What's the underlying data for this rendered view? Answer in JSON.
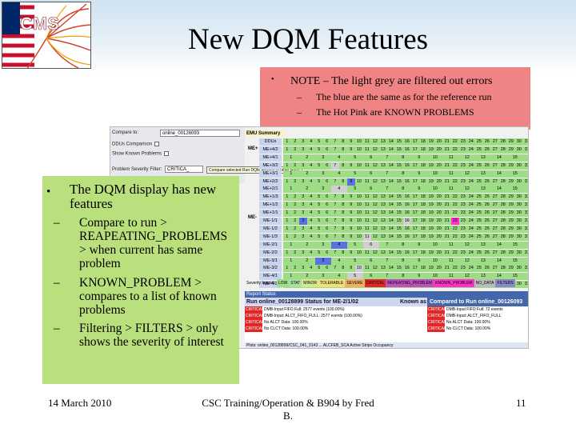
{
  "slide": {
    "title": "New DQM Features",
    "logo_text": "CMS",
    "note": {
      "main": "NOTE – The light grey are filtered out errors",
      "subs": [
        "The blue are the same as for the reference run",
        "The Hot Pink are KNOWN PROBLEMS"
      ]
    },
    "green_box": {
      "main": "The DQM display has new features",
      "subs": [
        "Compare to run > REAPEATING_PROBLEMS > when current has same problem",
        "KNOWN_PROBLEM > compares to a list of known problems",
        "Filtering > FILTERS > only shows the severity of interest"
      ]
    },
    "footer": {
      "date": "14 March 2010",
      "center": "CSC Training/Operation & B904 by Fred B.",
      "page": "11"
    }
  },
  "screenshot": {
    "form": {
      "compare_to_label": "Compare to:",
      "compare_to_value": "online_00126093",
      "ddu_comparison_label": "DDUs Comparison",
      "show_known_problems_label": "Show Known Problems",
      "problem_severity_filter_label": "Problem Severity Filter:",
      "problem_severity_filter_value": "CRITICA_",
      "tooltip": "Compare selected Run DQM Results to other Runs"
    },
    "grid": {
      "emu_label": "EMU Summary",
      "ddus_label": "DDUs",
      "me_plus": "ME+",
      "me_minus": "ME-",
      "rows": [
        "ME+4/2",
        "ME+4/1",
        "ME+3/2",
        "ME+3/1",
        "ME+2/2",
        "ME+2/1",
        "ME+1/3",
        "ME+1/2",
        "ME+1/1",
        "ME-1/1",
        "ME-1/2",
        "ME-1/3",
        "ME-2/1",
        "ME-2/2",
        "ME-3/1",
        "ME-3/2",
        "ME-4/1",
        "ME-4/2"
      ]
    },
    "severity": {
      "label": "Severity legend:",
      "items": [
        "LOW",
        "STAT",
        "MINOR",
        "TOLERABLE",
        "SEVERE",
        "CRITICAL",
        "REPEATING_PROBLEM",
        "KNOWN_PROBLEM",
        "NO_DATA",
        "FILTERS"
      ]
    },
    "report": {
      "header": "Report Status",
      "run_title": "Run online_00128899 Status for ME-2/1/02",
      "known_as": "Known as",
      "compared_title": "Compared to Run online_00126093",
      "rows": [
        {
          "tag": "CRITICAL",
          "msg": "DMB-Input FIFO Full: 2577 events (100.00%)",
          "tag2": "CRITICAL",
          "msg2": "DMB-Input FIFO Full: 72 events"
        },
        {
          "tag": "CRITICAL",
          "msg": "DMB-Input: ALCT_FIFO_FULL: 2577 events (100.00%)",
          "tag2": "CRITICAL",
          "msg2": "DMB-Input: ALCT_FIFO_FULL"
        },
        {
          "tag": "CRITICAL",
          "msg": "No ALCT Data: 100.00%",
          "tag2": "CRITICAL",
          "msg2": "No ALCT Data: 100.00%"
        },
        {
          "tag": "CRITICAL",
          "msg": "No CLCT Data: 100.00%",
          "tag2": "CRITICAL",
          "msg2": "No CLCT Data: 100.00%"
        }
      ],
      "plots": "Plots: online_00128899/CSC_041_0143 ... ALCFEB_SCA Active Strips Occupancy"
    },
    "colors": {
      "ok": "#9fdc86",
      "filtered": "#cfcfcf",
      "same_as_ref": "#5a72e0",
      "known_problem": "#ff33cc",
      "critical": "#e02828",
      "row_label": "#c8d4ee"
    }
  }
}
